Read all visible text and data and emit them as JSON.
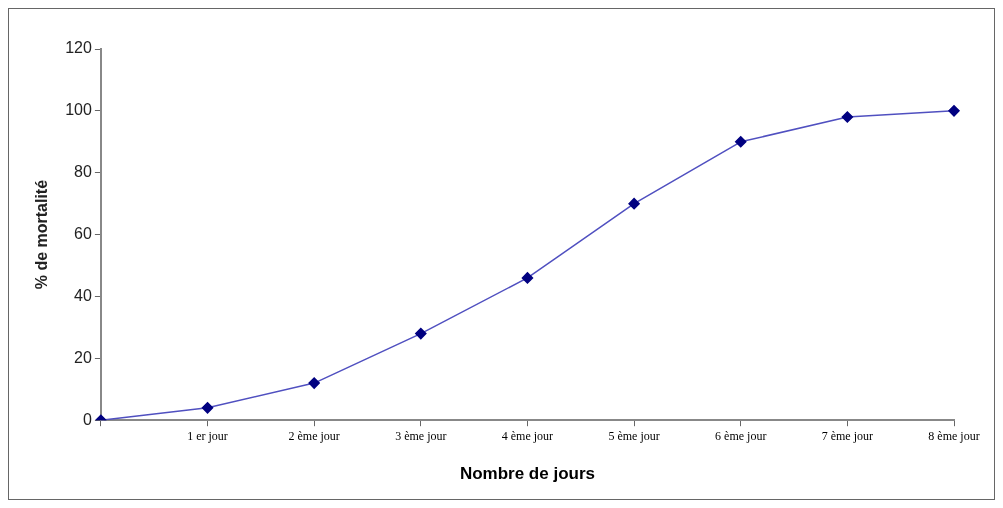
{
  "chart_data": {
    "type": "line",
    "xlabel": "Nombre de jours",
    "ylabel": "% de mortalité",
    "categories": [
      null,
      "1 er jour",
      "2 ème jour",
      "3 ème jour",
      "4 ème jour",
      "5 ème jour",
      "6 ème jour",
      "7 ème jour",
      "8 ème jour"
    ],
    "series": [
      {
        "color": "#5050c0",
        "values": [
          0,
          4,
          12,
          28,
          46,
          70,
          90,
          98,
          100
        ]
      }
    ],
    "ylim": [
      0,
      120
    ],
    "yticks": [
      0,
      20,
      40,
      60,
      80,
      100,
      120
    ],
    "grid": false,
    "legend": false,
    "marker": "diamond",
    "line_style": "solid"
  }
}
